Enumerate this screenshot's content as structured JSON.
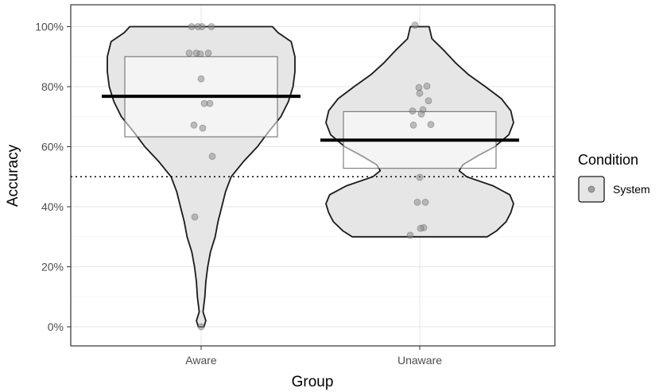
{
  "chart_data": {
    "type": "violin",
    "xlabel": "Group",
    "ylabel": "Accuracy",
    "ylim": [
      -7,
      108
    ],
    "yticks": [
      0,
      20,
      40,
      60,
      80,
      100
    ],
    "ytick_labels": [
      "0%",
      "20%",
      "40%",
      "60%",
      "80%",
      "100%"
    ],
    "categories": [
      "Aware",
      "Unaware"
    ],
    "grid": true,
    "chance_line": 50,
    "legend": {
      "title": "Condition",
      "position": "right",
      "entries": [
        {
          "label": "System",
          "color": "#9e9e9e"
        }
      ]
    },
    "colors": {
      "violin_fill": "#e6e6e6",
      "violin_stroke": "#1a1a1a",
      "box_stroke": "#666666",
      "mean_line": "#000000",
      "point": "#8c8c8c",
      "panel_border": "#333333",
      "grid_major": "#e5e5e5",
      "grid_minor": "#f2f2f2"
    },
    "groups": [
      {
        "name": "Aware",
        "mean": 76.8,
        "box": [
          63.3,
          90
        ],
        "density": [
          [
            0,
            0.03
          ],
          [
            2,
            0.05
          ],
          [
            5,
            0.02
          ],
          [
            10,
            0.04
          ],
          [
            15,
            0.05
          ],
          [
            20,
            0.07
          ],
          [
            25,
            0.1
          ],
          [
            30,
            0.15
          ],
          [
            35,
            0.18
          ],
          [
            40,
            0.22
          ],
          [
            45,
            0.26
          ],
          [
            50,
            0.32
          ],
          [
            55,
            0.45
          ],
          [
            60,
            0.6
          ],
          [
            65,
            0.72
          ],
          [
            70,
            0.85
          ],
          [
            75,
            0.93
          ],
          [
            80,
            0.98
          ],
          [
            85,
            1.0
          ],
          [
            90,
            1.0
          ],
          [
            95,
            0.96
          ],
          [
            98,
            0.82
          ],
          [
            100,
            0.76
          ]
        ],
        "points": [
          100,
          100,
          100,
          100,
          91.2,
          91.2,
          91.2,
          90.9,
          82.6,
          74.4,
          74.4,
          67.2,
          66.2,
          56.8,
          36.6,
          0
        ]
      },
      {
        "name": "Unaware",
        "mean": 62.2,
        "box": [
          52.8,
          71.7
        ],
        "density": [
          [
            30,
            0.72
          ],
          [
            32,
            0.82
          ],
          [
            35,
            0.92
          ],
          [
            38,
            0.97
          ],
          [
            41,
            1.0
          ],
          [
            44,
            0.96
          ],
          [
            47,
            0.78
          ],
          [
            50,
            0.5
          ],
          [
            52,
            0.42
          ],
          [
            54,
            0.46
          ],
          [
            57,
            0.62
          ],
          [
            60,
            0.8
          ],
          [
            64,
            0.95
          ],
          [
            68,
            1.0
          ],
          [
            72,
            0.97
          ],
          [
            76,
            0.87
          ],
          [
            80,
            0.7
          ],
          [
            84,
            0.52
          ],
          [
            88,
            0.38
          ],
          [
            92,
            0.26
          ],
          [
            96,
            0.13
          ],
          [
            100,
            0.1
          ]
        ],
        "points": [
          100.5,
          80.2,
          79.7,
          77.8,
          75.3,
          72.3,
          71.9,
          70.9,
          67.4,
          67.2,
          49.8,
          41.5,
          41.5,
          33,
          32.8,
          30.5
        ]
      }
    ]
  }
}
